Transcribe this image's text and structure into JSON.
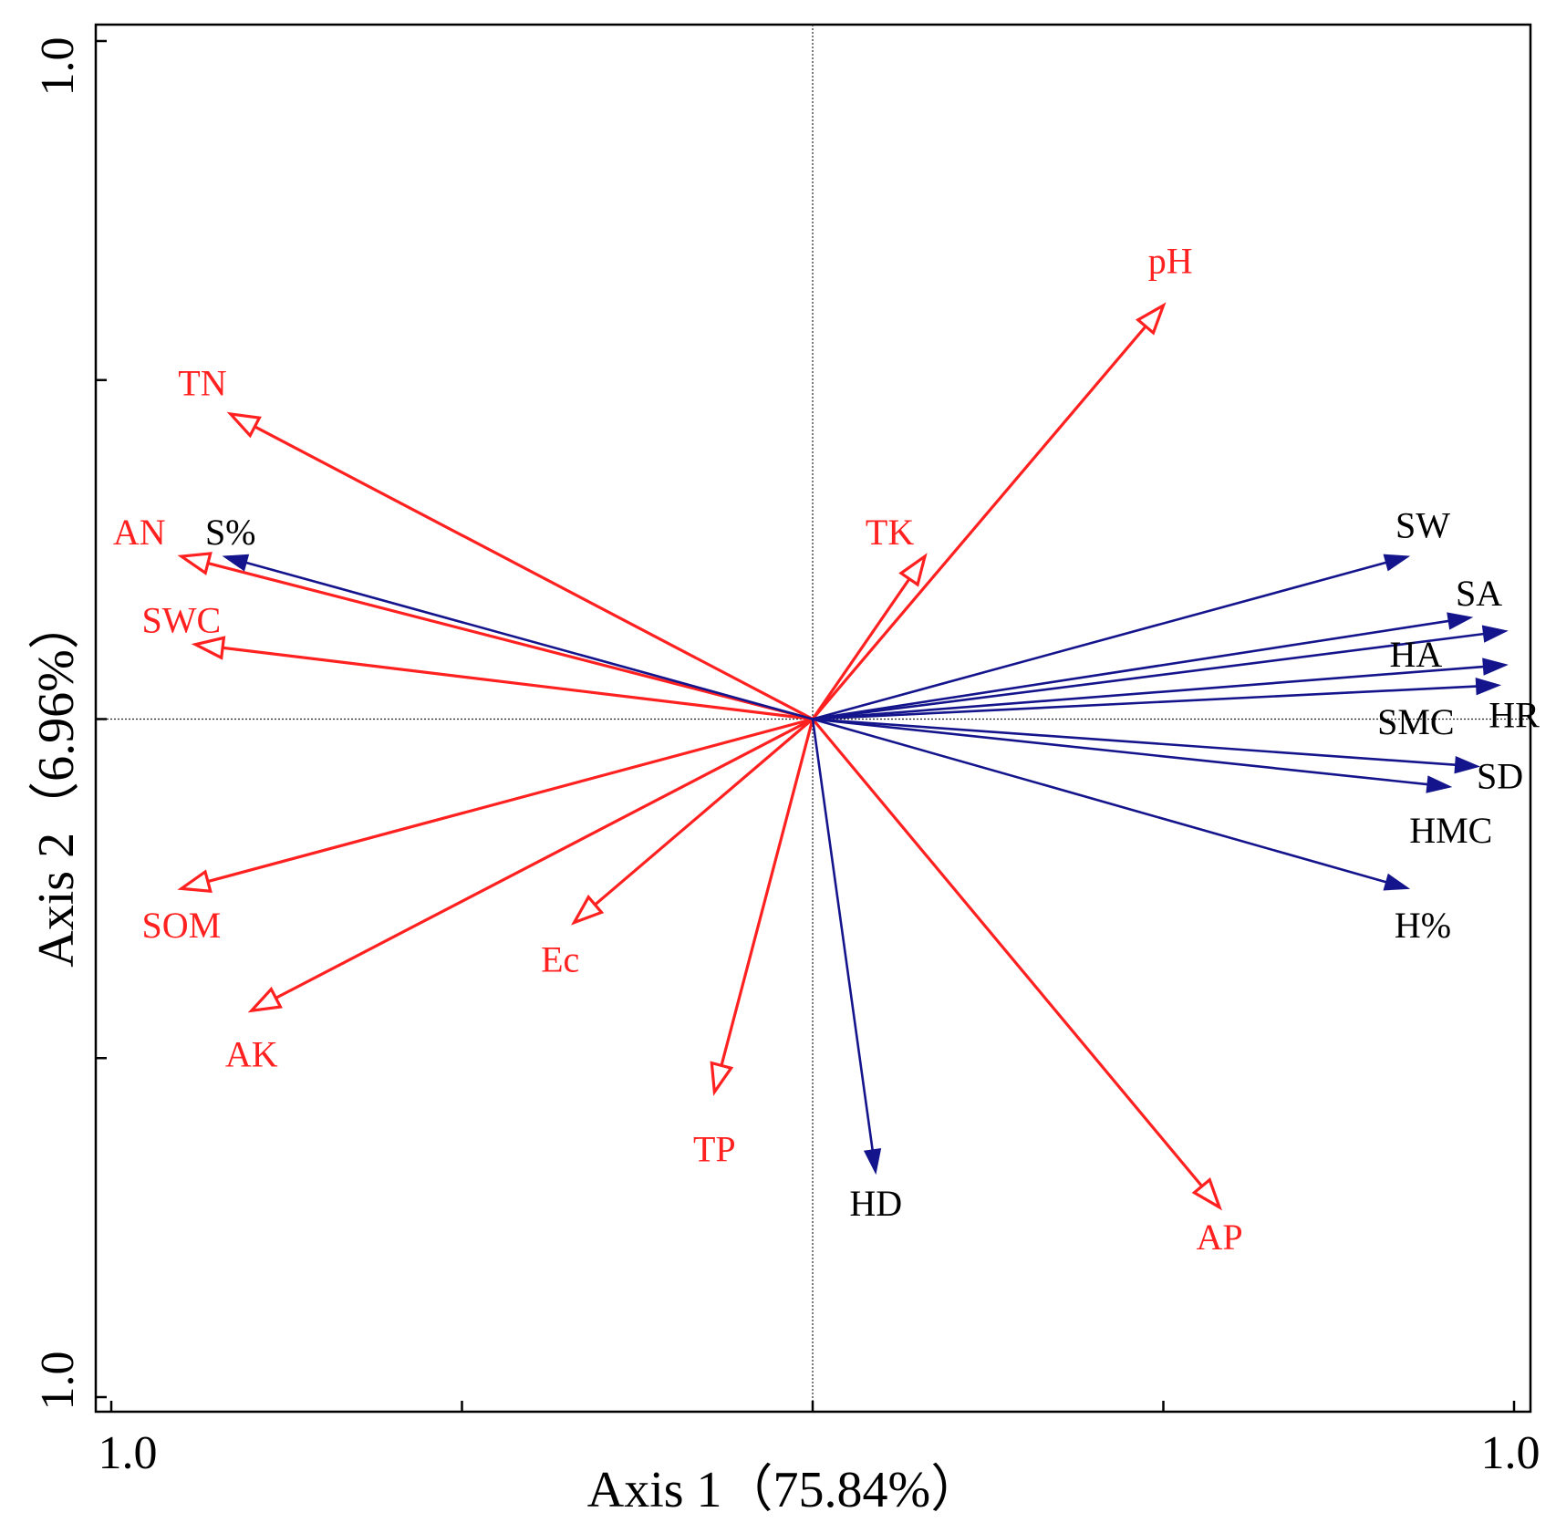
{
  "chart_data": {
    "type": "biplot",
    "title": "",
    "xlabel": "Axis 1（75.84%）",
    "ylabel": "Axis 2（6.96%）",
    "xlim": [
      -1.0,
      1.0
    ],
    "ylim": [
      -1.0,
      1.0
    ],
    "x_tick_labels": {
      "min": "1.0",
      "max": "1.0"
    },
    "y_tick_labels": {
      "min": "1.0",
      "max": "1.0"
    },
    "x_ticks": [
      -1.0,
      -0.5,
      0.0,
      0.5,
      1.0
    ],
    "y_ticks": [
      -1.0,
      -0.5,
      0.0,
      0.5,
      1.0
    ],
    "colors": {
      "environmental": "#ff2020",
      "response": "#14148c",
      "label_response": "#000000"
    },
    "series": [
      {
        "name": "environmental",
        "style": "open-arrow",
        "vectors": [
          {
            "label": "pH",
            "x": 0.5,
            "y": 0.61
          },
          {
            "label": "TN",
            "x": -0.83,
            "y": 0.45
          },
          {
            "label": "AN",
            "x": -0.9,
            "y": 0.24
          },
          {
            "label": "SWC",
            "x": -0.88,
            "y": 0.11
          },
          {
            "label": "TK",
            "x": 0.16,
            "y": 0.24
          },
          {
            "label": "SOM",
            "x": -0.9,
            "y": -0.25
          },
          {
            "label": "AK",
            "x": -0.8,
            "y": -0.43
          },
          {
            "label": "Ec",
            "x": -0.34,
            "y": -0.3
          },
          {
            "label": "TP",
            "x": -0.14,
            "y": -0.55
          },
          {
            "label": "AP",
            "x": 0.58,
            "y": -0.72
          }
        ]
      },
      {
        "name": "response",
        "style": "filled-arrow",
        "vectors": [
          {
            "label": "S%",
            "x": -0.84,
            "y": 0.24
          },
          {
            "label": "SW",
            "x": 0.85,
            "y": 0.24
          },
          {
            "label": "SA",
            "x": 0.94,
            "y": 0.15
          },
          {
            "label": "HA",
            "x": 0.99,
            "y": 0.13
          },
          {
            "label": "HR",
            "x": 0.99,
            "y": 0.08
          },
          {
            "label": "SMC",
            "x": 0.98,
            "y": 0.05
          },
          {
            "label": "SD",
            "x": 0.95,
            "y": -0.07
          },
          {
            "label": "HMC",
            "x": 0.91,
            "y": -0.1
          },
          {
            "label": "H%",
            "x": 0.85,
            "y": -0.25
          },
          {
            "label": "HD",
            "x": 0.09,
            "y": -0.67
          }
        ]
      }
    ],
    "labels": [
      {
        "text": "pH",
        "series": "environmental",
        "x": 0.51,
        "y": 0.67
      },
      {
        "text": "TN",
        "series": "environmental",
        "x": -0.87,
        "y": 0.49
      },
      {
        "text": "AN",
        "series": "environmental",
        "x": -0.96,
        "y": 0.27
      },
      {
        "text": "S%",
        "series": "response",
        "x": -0.83,
        "y": 0.27
      },
      {
        "text": "SWC",
        "series": "environmental",
        "x": -0.9,
        "y": 0.14
      },
      {
        "text": "TK",
        "series": "environmental",
        "x": 0.11,
        "y": 0.27
      },
      {
        "text": "SW",
        "series": "response",
        "x": 0.87,
        "y": 0.28
      },
      {
        "text": "SA",
        "series": "response",
        "x": 0.95,
        "y": 0.18
      },
      {
        "text": "HA",
        "series": "response",
        "x": 0.86,
        "y": 0.09
      },
      {
        "text": "HR",
        "series": "response",
        "x": 1.0,
        "y": 0.0
      },
      {
        "text": "SMC",
        "series": "response",
        "x": 0.86,
        "y": -0.01
      },
      {
        "text": "SD",
        "series": "response",
        "x": 0.98,
        "y": -0.09
      },
      {
        "text": "HMC",
        "series": "response",
        "x": 0.91,
        "y": -0.17
      },
      {
        "text": "H%",
        "series": "response",
        "x": 0.87,
        "y": -0.31
      },
      {
        "text": "SOM",
        "series": "environmental",
        "x": -0.9,
        "y": -0.31
      },
      {
        "text": "Ec",
        "series": "environmental",
        "x": -0.36,
        "y": -0.36
      },
      {
        "text": "AK",
        "series": "environmental",
        "x": -0.8,
        "y": -0.5
      },
      {
        "text": "TP",
        "series": "environmental",
        "x": -0.14,
        "y": -0.64
      },
      {
        "text": "HD",
        "series": "response",
        "x": 0.09,
        "y": -0.72
      },
      {
        "text": "AP",
        "series": "environmental",
        "x": 0.58,
        "y": -0.77
      }
    ]
  }
}
